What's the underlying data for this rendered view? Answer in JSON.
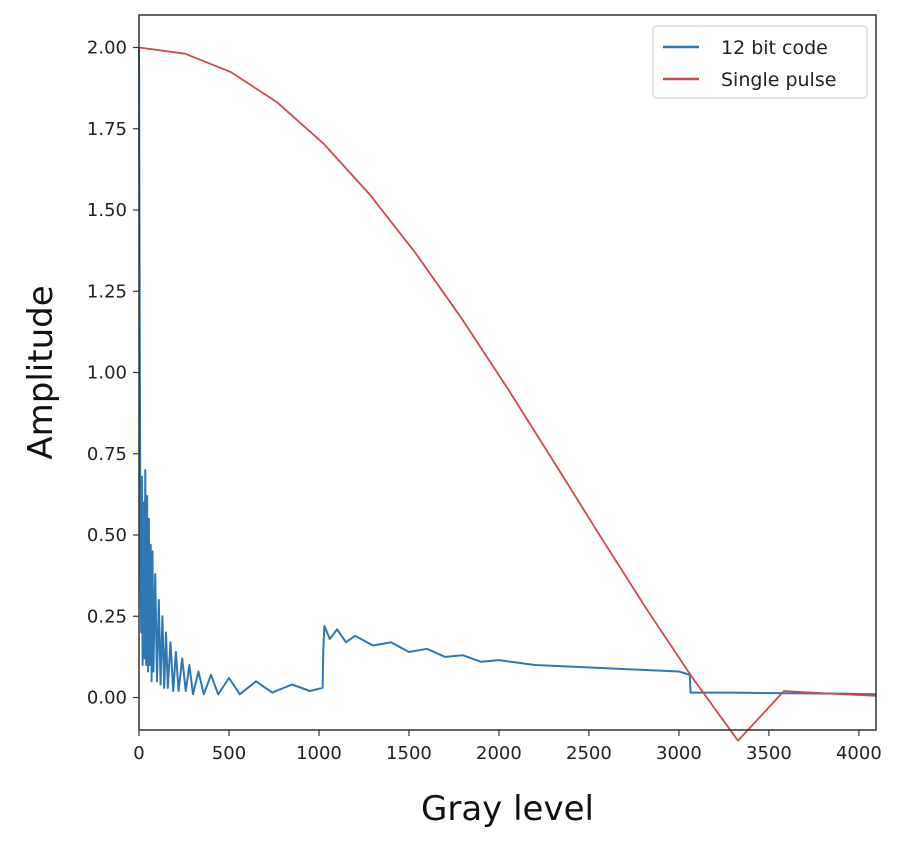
{
  "chart_data": {
    "type": "line",
    "title": "",
    "xlabel": "Gray level",
    "ylabel": "Amplitude",
    "xlim": [
      0,
      4095
    ],
    "ylim": [
      -0.1,
      2.1
    ],
    "xticks": [
      0,
      500,
      1000,
      1500,
      2000,
      2500,
      3000,
      3500,
      4000
    ],
    "xtick_labels": [
      "0",
      "500",
      "1000",
      "1500",
      "2000",
      "2500",
      "3000",
      "3500",
      "4000"
    ],
    "yticks": [
      0.0,
      0.25,
      0.5,
      0.75,
      1.0,
      1.25,
      1.5,
      1.75,
      2.0
    ],
    "ytick_labels": [
      "0.00",
      "0.25",
      "0.50",
      "0.75",
      "1.00",
      "1.25",
      "1.50",
      "1.75",
      "2.00"
    ],
    "grid": false,
    "legend_position": "top-right",
    "series": [
      {
        "name": "12 bit code",
        "color": "#2f77b0",
        "points": [
          [
            0,
            2.0
          ],
          [
            4,
            1.2
          ],
          [
            8,
            0.45
          ],
          [
            12,
            0.2
          ],
          [
            16,
            0.68
          ],
          [
            20,
            0.1
          ],
          [
            25,
            0.6
          ],
          [
            30,
            0.12
          ],
          [
            35,
            0.7
          ],
          [
            40,
            0.1
          ],
          [
            45,
            0.62
          ],
          [
            50,
            0.08
          ],
          [
            55,
            0.55
          ],
          [
            60,
            0.1
          ],
          [
            65,
            0.47
          ],
          [
            70,
            0.05
          ],
          [
            75,
            0.45
          ],
          [
            80,
            0.08
          ],
          [
            90,
            0.38
          ],
          [
            100,
            0.05
          ],
          [
            110,
            0.3
          ],
          [
            120,
            0.04
          ],
          [
            130,
            0.25
          ],
          [
            140,
            0.03
          ],
          [
            150,
            0.2
          ],
          [
            160,
            0.03
          ],
          [
            175,
            0.17
          ],
          [
            190,
            0.02
          ],
          [
            205,
            0.14
          ],
          [
            220,
            0.02
          ],
          [
            240,
            0.12
          ],
          [
            260,
            0.02
          ],
          [
            280,
            0.1
          ],
          [
            300,
            0.01
          ],
          [
            330,
            0.08
          ],
          [
            360,
            0.01
          ],
          [
            400,
            0.07
          ],
          [
            440,
            0.01
          ],
          [
            500,
            0.06
          ],
          [
            560,
            0.01
          ],
          [
            650,
            0.05
          ],
          [
            740,
            0.015
          ],
          [
            850,
            0.04
          ],
          [
            950,
            0.02
          ],
          [
            1020,
            0.03
          ],
          [
            1024,
            0.15
          ],
          [
            1030,
            0.22
          ],
          [
            1060,
            0.18
          ],
          [
            1100,
            0.21
          ],
          [
            1150,
            0.17
          ],
          [
            1200,
            0.19
          ],
          [
            1300,
            0.16
          ],
          [
            1400,
            0.17
          ],
          [
            1500,
            0.14
          ],
          [
            1600,
            0.15
          ],
          [
            1700,
            0.125
          ],
          [
            1800,
            0.13
          ],
          [
            1900,
            0.11
          ],
          [
            2000,
            0.115
          ],
          [
            2200,
            0.1
          ],
          [
            2400,
            0.095
          ],
          [
            2600,
            0.09
          ],
          [
            2800,
            0.085
          ],
          [
            3000,
            0.08
          ],
          [
            3060,
            0.07
          ],
          [
            3065,
            0.015
          ],
          [
            3300,
            0.015
          ],
          [
            3600,
            0.013
          ],
          [
            3900,
            0.012
          ],
          [
            4095,
            0.01
          ]
        ]
      },
      {
        "name": "Single pulse",
        "color": "#cc4a4e",
        "points": [
          [
            0,
            2.0
          ],
          [
            256,
            1.981
          ],
          [
            512,
            1.924
          ],
          [
            768,
            1.831
          ],
          [
            1024,
            1.705
          ],
          [
            1280,
            1.549
          ],
          [
            1536,
            1.368
          ],
          [
            1792,
            1.167
          ],
          [
            2048,
            0.951
          ],
          [
            2304,
            0.726
          ],
          [
            2560,
            0.499
          ],
          [
            2816,
            0.276
          ],
          [
            3072,
            0.063
          ],
          [
            3328,
            -0.133
          ],
          [
            3584,
            0.02
          ],
          [
            3840,
            0.012
          ],
          [
            4095,
            0.005
          ]
        ]
      }
    ]
  }
}
